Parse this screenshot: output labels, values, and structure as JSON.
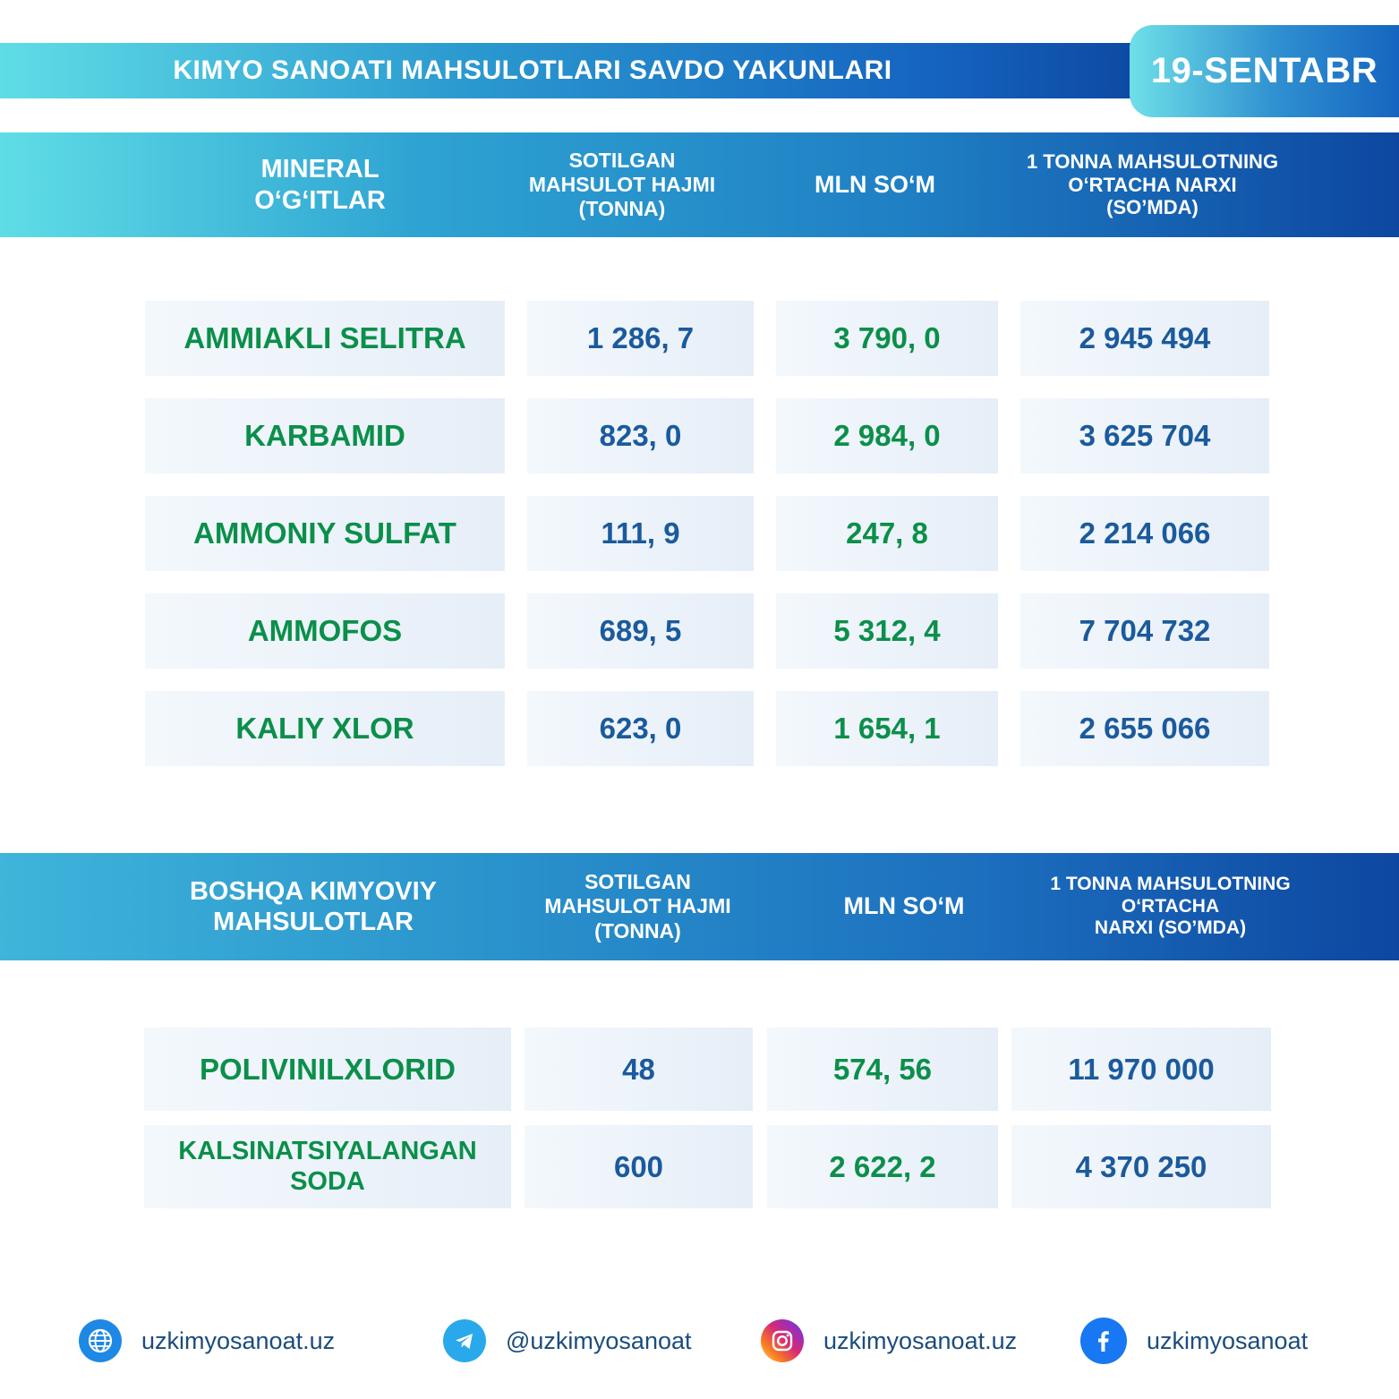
{
  "header": {
    "title": "KIMYO SANOATI MAHSULOTLARI SAVDO YAKUNLARI",
    "date": "19-SENTABR"
  },
  "section1": {
    "columns": [
      "MINERAL\nO‘G‘ITLAR",
      "SOTILGAN\nMAHSULOT HAJMI\n(TONNA)",
      "MLN SO‘M",
      "1 TONNA MAHSULOTNING\nO‘RTACHA NARXI\n(SO’MDA)"
    ],
    "rows": [
      {
        "name": "AMMIAKLI SELITRA",
        "volume": "1 286, 7",
        "mln": "3 790, 0",
        "price": "2 945 494"
      },
      {
        "name": "KARBAMID",
        "volume": "823, 0",
        "mln": "2 984, 0",
        "price": "3 625 704"
      },
      {
        "name": "AMMONIY SULFAT",
        "volume": "111, 9",
        "mln": "247, 8",
        "price": "2 214 066"
      },
      {
        "name": "AMMOFOS",
        "volume": "689, 5",
        "mln": "5 312, 4",
        "price": "7 704 732"
      },
      {
        "name": "KALIY XLOR",
        "volume": "623, 0",
        "mln": "1 654, 1",
        "price": "2 655 066"
      }
    ]
  },
  "section2": {
    "columns": [
      "BOSHQA KIMYOVIY\nMAHSULOTLAR",
      "SOTILGAN\nMAHSULOT HAJMI\n(TONNA)",
      "MLN SO‘M",
      "1 TONNA MAHSULOTNING\nO‘RTACHA\nNARXI (SO’MDA)"
    ],
    "rows": [
      {
        "name": "POLIVINILXLORID",
        "volume": "48",
        "mln": "574, 56",
        "price": "11 970 000"
      },
      {
        "name": "KALSINATSIYALANGAN\nSODA",
        "volume": "600",
        "mln": "2 622, 2",
        "price": "4 370 250"
      }
    ]
  },
  "footer": {
    "website": {
      "text": "uzkimyosanoat.uz",
      "icon": "globe-icon",
      "color": "#1e88e5"
    },
    "telegram": {
      "text": "@uzkimyosanoat",
      "icon": "telegram-icon",
      "color": "#29a9eb"
    },
    "instagram": {
      "text": "uzkimyosanoat.uz",
      "icon": "instagram-icon",
      "color": "#d6249f"
    },
    "facebook": {
      "text": "uzkimyosanoat",
      "icon": "facebook-icon",
      "color": "#1877f2"
    }
  },
  "colors": {
    "name_text": "#0b8f4a",
    "value_blue": "#1b5a9c",
    "value_green": "#0b8f4a",
    "header_start": "#5fdde6",
    "header_end": "#0d47a1"
  }
}
